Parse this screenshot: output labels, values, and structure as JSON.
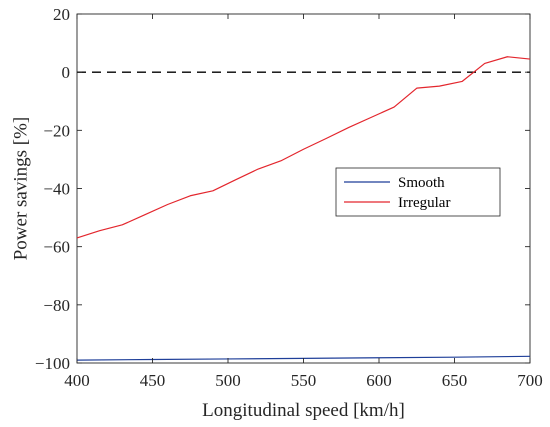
{
  "chart_data": {
    "type": "line",
    "title": "",
    "xlabel": "Longitudinal speed [km/h]",
    "ylabel": "Power savings [%]",
    "xlim": [
      400,
      700
    ],
    "ylim": [
      -100,
      20
    ],
    "xticks": [
      400,
      450,
      500,
      550,
      600,
      650,
      700
    ],
    "yticks": [
      -100,
      -80,
      -60,
      -40,
      -20,
      0,
      20
    ],
    "xtick_labels": [
      "400",
      "450",
      "500",
      "550",
      "600",
      "650",
      "700"
    ],
    "ytick_labels": [
      "−100",
      "−80",
      "−60",
      "−40",
      "−20",
      "0",
      "20"
    ],
    "grid": false,
    "legend_position": "center-right",
    "reference_line": {
      "y": 0,
      "style": "dashed",
      "color": "#000000"
    },
    "series": [
      {
        "name": "Smooth",
        "color": "#1f3f99",
        "x": [
          400,
          450,
          500,
          550,
          600,
          650,
          700
        ],
        "y": [
          -99.0,
          -98.8,
          -98.6,
          -98.4,
          -98.2,
          -98.0,
          -97.7
        ]
      },
      {
        "name": "Irregular",
        "color": "#e3262d",
        "x": [
          400,
          415,
          430,
          445,
          460,
          475,
          490,
          505,
          520,
          535,
          550,
          565,
          580,
          595,
          610,
          625,
          640,
          655,
          670,
          685,
          700
        ],
        "y": [
          -57,
          -54.5,
          -52.5,
          -49,
          -45.5,
          -42.5,
          -40.8,
          -37,
          -33.3,
          -30.5,
          -26.5,
          -22.8,
          -19,
          -15.5,
          -12,
          -5.5,
          -4.8,
          -3.2,
          3,
          5.3,
          4.5
        ]
      }
    ]
  }
}
